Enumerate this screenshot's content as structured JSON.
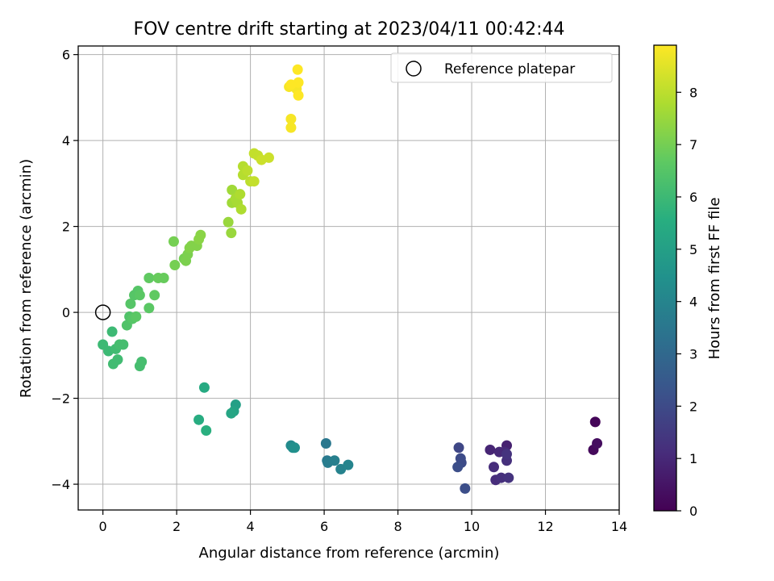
{
  "chart_data": {
    "type": "scatter",
    "title": "FOV centre drift starting at 2023/04/11 00:42:44",
    "xlabel": "Angular distance from reference (arcmin)",
    "ylabel": "Rotation from reference (arcmin)",
    "xlim": [
      -0.67,
      14.0
    ],
    "ylim": [
      -4.6,
      6.2
    ],
    "xticks": [
      0,
      2,
      4,
      6,
      8,
      10,
      12,
      14
    ],
    "yticks": [
      -4,
      -2,
      0,
      2,
      4,
      6
    ],
    "grid": true,
    "legend": {
      "position": "top-right",
      "entries": [
        "Reference platepar"
      ]
    },
    "reference_point": {
      "name": "Reference platepar",
      "x": 0,
      "y": 0
    },
    "colorbar": {
      "label": "Hours from first FF file",
      "colormap": "viridis",
      "range": [
        0,
        8.9
      ],
      "ticks": [
        0,
        1,
        2,
        3,
        4,
        5,
        6,
        7,
        8
      ]
    },
    "series": [
      {
        "x": [
          13.35,
          13.3,
          13.4,
          10.95,
          10.5,
          10.75,
          10.9,
          10.6,
          10.65,
          10.8,
          10.95,
          11.0,
          10.95,
          9.65,
          9.7,
          9.72,
          9.62,
          9.82,
          6.05,
          6.08,
          6.1,
          6.28,
          6.45,
          6.65,
          5.1,
          5.15,
          5.2,
          3.6,
          3.55,
          3.48,
          2.75,
          2.6,
          2.8,
          0.0,
          0.15,
          0.25,
          0.28,
          0.35,
          0.4,
          0.45,
          0.55,
          1.0,
          1.05,
          0.65,
          0.72,
          0.75,
          0.85,
          0.8,
          0.95,
          1.0,
          0.9,
          1.25,
          1.4,
          1.25,
          1.5,
          1.65,
          1.95,
          1.92,
          2.2,
          2.25,
          2.3,
          2.35,
          2.4,
          2.55,
          2.6,
          2.65,
          3.4,
          3.48,
          3.5,
          3.5,
          3.6,
          3.65,
          3.72,
          3.75,
          3.8,
          3.8,
          3.92,
          4.0,
          4.1,
          4.2,
          4.1,
          4.3,
          4.5,
          5.05,
          5.1,
          5.1,
          5.25,
          5.3,
          5.28,
          5.3,
          5.1
        ],
        "y": [
          -2.55,
          -3.2,
          -3.05,
          -3.1,
          -3.2,
          -3.25,
          -3.25,
          -3.6,
          -3.9,
          -3.85,
          -3.45,
          -3.85,
          -3.3,
          -3.15,
          -3.4,
          -3.5,
          -3.6,
          -4.1,
          -3.05,
          -3.45,
          -3.5,
          -3.45,
          -3.65,
          -3.55,
          -3.1,
          -3.15,
          -3.15,
          -2.15,
          -2.3,
          -2.35,
          -1.75,
          -2.5,
          -2.75,
          -0.75,
          -0.9,
          -0.45,
          -1.2,
          -0.85,
          -1.1,
          -0.75,
          -0.75,
          -1.25,
          -1.15,
          -0.3,
          -0.1,
          0.2,
          0.4,
          -0.15,
          0.5,
          0.4,
          -0.1,
          0.1,
          0.4,
          0.8,
          0.8,
          0.8,
          1.1,
          1.65,
          1.25,
          1.2,
          1.35,
          1.5,
          1.55,
          1.55,
          1.7,
          1.8,
          2.1,
          1.85,
          2.55,
          2.85,
          2.65,
          2.55,
          2.75,
          2.4,
          3.4,
          3.2,
          3.3,
          3.05,
          3.7,
          3.65,
          3.05,
          3.55,
          3.6,
          5.25,
          4.5,
          4.3,
          5.2,
          5.35,
          5.65,
          5.05,
          5.3
        ],
        "hours": [
          0.1,
          0.2,
          0.3,
          0.8,
          0.9,
          1.0,
          1.0,
          1.1,
          1.1,
          1.2,
          1.2,
          1.3,
          1.3,
          1.9,
          2.0,
          2.0,
          2.1,
          2.1,
          3.5,
          3.6,
          3.7,
          3.8,
          3.9,
          4.0,
          4.2,
          4.3,
          4.4,
          5.0,
          5.1,
          5.2,
          5.4,
          5.5,
          5.6,
          6.0,
          6.0,
          6.0,
          6.1,
          6.1,
          6.1,
          6.2,
          6.2,
          6.2,
          6.2,
          6.4,
          6.4,
          6.5,
          6.5,
          6.5,
          6.5,
          6.6,
          6.6,
          6.6,
          6.7,
          6.7,
          6.8,
          6.8,
          7.0,
          7.0,
          7.0,
          7.1,
          7.1,
          7.2,
          7.2,
          7.2,
          7.3,
          7.3,
          7.5,
          7.5,
          7.6,
          7.6,
          7.7,
          7.7,
          7.8,
          7.8,
          7.9,
          7.9,
          8.0,
          8.0,
          8.1,
          8.1,
          8.1,
          8.2,
          8.2,
          8.8,
          8.8,
          8.8,
          8.8,
          8.9,
          8.9,
          8.9,
          8.9
        ]
      }
    ]
  }
}
